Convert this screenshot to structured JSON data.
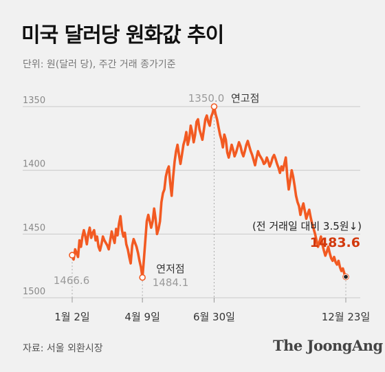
{
  "title": "미국 달러당 원화값 추이",
  "unit_note": "단위: 원(달러 당), 주간 거래 종가기준",
  "source": "자료: 서울 외환시장",
  "brand": "The JoongAng",
  "colors": {
    "line": "#f25a22",
    "highlight": "#d2380c",
    "grid": "#c9c9c9",
    "muted": "#9a9a9a",
    "background": "#f1f1f1"
  },
  "chart_data": {
    "type": "line",
    "title": "미국 달러당 원화값 추이",
    "ylabel": "단위: 원(달러 당)",
    "y_inverted": true,
    "ylim": [
      1350,
      1500
    ],
    "yticks": [
      1350,
      1400,
      1450,
      1500
    ],
    "xticks": [
      "1월 2일",
      "4월 9일",
      "6월 30일",
      "12월 23일"
    ],
    "series": [
      {
        "values": [
          1466.6,
          1470,
          1462,
          1465,
          1468,
          1455,
          1460,
          1452,
          1447,
          1452,
          1458,
          1450,
          1445,
          1453,
          1449,
          1447,
          1455,
          1452,
          1460,
          1463,
          1458,
          1452,
          1455,
          1457,
          1459,
          1462,
          1455,
          1448,
          1453,
          1457,
          1446,
          1451,
          1442,
          1436,
          1447,
          1452,
          1449,
          1458,
          1462,
          1468,
          1473,
          1459,
          1454,
          1457,
          1460,
          1465,
          1471,
          1476,
          1484.1,
          1470,
          1455,
          1440,
          1435,
          1440,
          1445,
          1440,
          1430,
          1438,
          1450,
          1446,
          1440,
          1425,
          1418,
          1415,
          1405,
          1400,
          1397,
          1410,
          1420,
          1405,
          1393,
          1385,
          1380,
          1388,
          1395,
          1388,
          1380,
          1376,
          1370,
          1380,
          1375,
          1365,
          1370,
          1378,
          1372,
          1362,
          1360,
          1368,
          1372,
          1376,
          1368,
          1360,
          1357,
          1362,
          1365,
          1358,
          1355,
          1350.0,
          1356,
          1360,
          1366,
          1372,
          1376,
          1382,
          1372,
          1376,
          1386,
          1390,
          1385,
          1380,
          1384,
          1389,
          1386,
          1382,
          1378,
          1381,
          1386,
          1389,
          1385,
          1380,
          1377,
          1381,
          1385,
          1388,
          1392,
          1396,
          1390,
          1385,
          1388,
          1390,
          1392,
          1395,
          1394,
          1390,
          1393,
          1397,
          1394,
          1390,
          1388,
          1391,
          1395,
          1398,
          1402,
          1397,
          1400,
          1395,
          1390,
          1405,
          1415,
          1408,
          1400,
          1405,
          1412,
          1420,
          1425,
          1428,
          1435,
          1430,
          1426,
          1432,
          1438,
          1434,
          1431,
          1437,
          1442,
          1446,
          1450,
          1455,
          1460,
          1456,
          1452,
          1458,
          1463,
          1467,
          1464,
          1460,
          1465,
          1469,
          1471,
          1468,
          1472,
          1474,
          1471,
          1476,
          1479,
          1477,
          1481,
          1483.6
        ]
      }
    ],
    "annotations": [
      {
        "label": "1466.6",
        "x": "1월 2일",
        "y": 1466.6
      },
      {
        "label": "연저점",
        "value_label": "1484.1",
        "x": "4월 9일",
        "y": 1484.1
      },
      {
        "label": "연고점",
        "value_label": "1350.0",
        "x": "6월 30일",
        "y": 1350.0
      },
      {
        "label": "(전 거래일 대비 3.5원↓)",
        "value_label": "1483.6",
        "x": "12월 23일",
        "y": 1483.6
      }
    ]
  }
}
